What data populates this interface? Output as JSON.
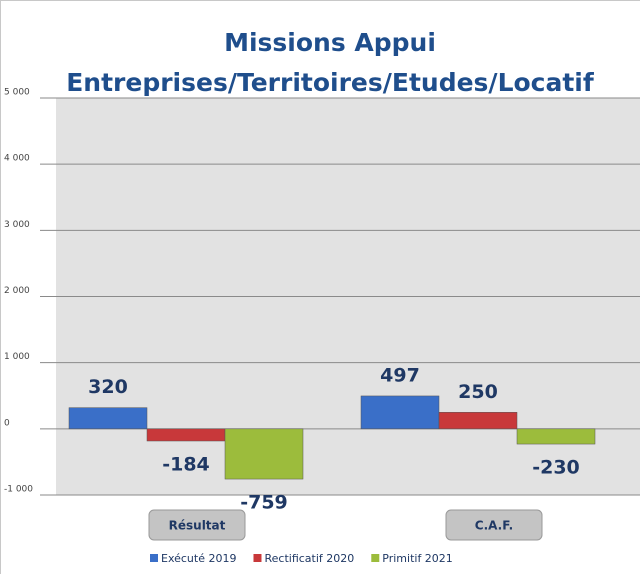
{
  "chart_data": {
    "type": "bar",
    "title": [
      "Missions Appui",
      "Entreprises/Territoires/Etudes/Locatif"
    ],
    "categories": [
      "Résultat",
      "C.A.F."
    ],
    "series": [
      {
        "name": "Exécuté 2019",
        "color": "#3a6fc8",
        "values": [
          320,
          497
        ]
      },
      {
        "name": "Rectificatif 2020",
        "color": "#c8383a",
        "values": [
          -184,
          250
        ]
      },
      {
        "name": "Primitif 2021",
        "color": "#9cbc3c",
        "values": [
          -759,
          -230
        ]
      }
    ],
    "ylim": [
      -1000,
      5000
    ],
    "yticks": [
      {
        "value": -1000,
        "label": "-1 000"
      },
      0,
      {
        "value": 1000,
        "label": "1 000"
      },
      {
        "value": 2000,
        "label": "2 000"
      },
      {
        "value": 3000,
        "label": "3 000"
      },
      {
        "value": 4000,
        "label": "4 000"
      },
      {
        "value": 5000,
        "label": "5 000"
      }
    ],
    "grid": true,
    "legend": "bottom"
  }
}
